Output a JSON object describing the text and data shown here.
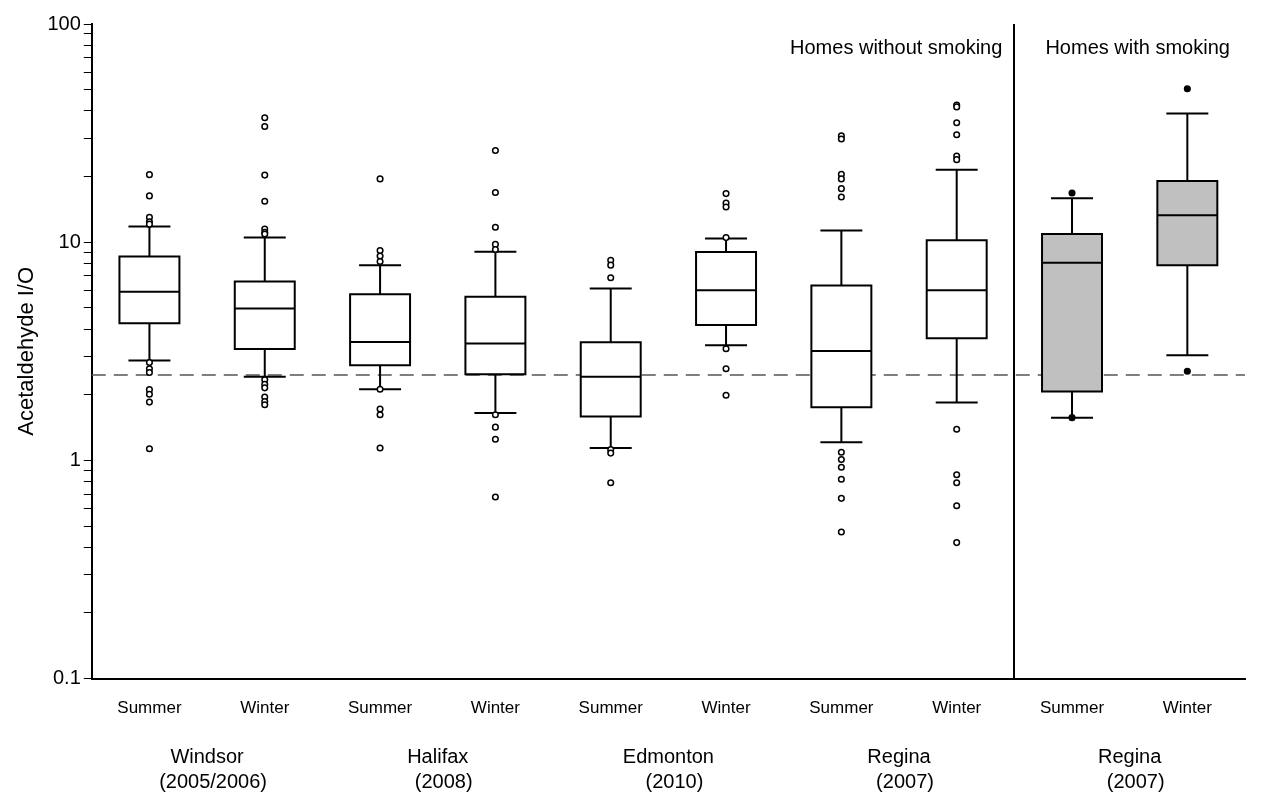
{
  "chart_data": {
    "type": "box",
    "ylabel": "Acetaldehyde I/O",
    "categories": [
      "Summer",
      "Winter",
      "Summer",
      "Winter",
      "Summer",
      "Winter",
      "Summer",
      "Winter",
      "Summer",
      "Winter"
    ],
    "colors": [
      "#ffffff",
      "#ffffff",
      "#ffffff",
      "#ffffff",
      "#ffffff",
      "#ffffff",
      "#ffffff",
      "#ffffff",
      "#c0c0c0",
      "#c0c0c0"
    ],
    "boxes": [
      {
        "low": 2.87,
        "q1": 4.25,
        "median": 5.93,
        "q3": 8.6,
        "high": 11.8,
        "outliers": [
          20.4,
          16.3,
          13.0,
          12.4,
          12.1,
          2.81,
          2.63,
          2.53,
          2.11,
          2.01,
          1.85,
          1.13
        ]
      },
      {
        "low": 2.42,
        "q1": 3.24,
        "median": 4.97,
        "q3": 6.6,
        "high": 10.5,
        "outliers": [
          37.2,
          33.9,
          20.3,
          15.4,
          11.5,
          11.1,
          10.9,
          2.34,
          2.23,
          2.15,
          1.95,
          1.86,
          1.8
        ]
      },
      {
        "low": 2.12,
        "q1": 2.73,
        "median": 3.49,
        "q3": 5.78,
        "high": 7.85,
        "outliers": [
          19.5,
          9.15,
          8.64,
          8.16,
          2.12,
          1.72,
          1.62,
          1.14
        ]
      },
      {
        "low": 1.65,
        "q1": 2.48,
        "median": 3.43,
        "q3": 5.62,
        "high": 9.05,
        "outliers": [
          26.3,
          16.9,
          11.7,
          9.77,
          9.26,
          1.62,
          1.42,
          1.25,
          0.68
        ]
      },
      {
        "low": 1.14,
        "q1": 1.59,
        "median": 2.42,
        "q3": 3.48,
        "high": 6.14,
        "outliers": [
          8.26,
          7.85,
          6.87,
          1.12,
          1.08,
          0.79
        ]
      },
      {
        "low": 3.37,
        "q1": 4.17,
        "median": 6.03,
        "q3": 9.02,
        "high": 10.4,
        "outliers": [
          16.7,
          15.1,
          14.5,
          10.5,
          3.25,
          2.63,
          1.99
        ]
      },
      {
        "low": 1.21,
        "q1": 1.75,
        "median": 3.17,
        "q3": 6.33,
        "high": 11.3,
        "outliers": [
          30.7,
          29.7,
          20.5,
          19.5,
          17.6,
          16.1,
          1.09,
          1.01,
          0.93,
          0.82,
          0.67,
          0.47
        ]
      },
      {
        "low": 1.84,
        "q1": 3.63,
        "median": 6.03,
        "q3": 10.2,
        "high": 21.5,
        "outliers": [
          42.5,
          41.7,
          35.3,
          31.1,
          24.8,
          23.9,
          1.39,
          0.86,
          0.79,
          0.62,
          0.42
        ]
      },
      {
        "low": 1.57,
        "q1": 2.07,
        "median": 8.04,
        "q3": 10.9,
        "high": 15.9,
        "outliers": [
          16.8,
          1.57
        ]
      },
      {
        "low": 3.03,
        "q1": 7.85,
        "median": 13.3,
        "q3": 19.1,
        "high": 38.9,
        "outliers": [
          50.5,
          2.56
        ]
      }
    ],
    "log": "y",
    "ylim": [
      0.1,
      100
    ],
    "yticks": [
      0.1,
      {
        "value": 0.2,
        "label": null
      },
      {
        "value": 0.3,
        "label": null
      },
      {
        "value": 0.4,
        "label": null
      },
      {
        "value": 0.5,
        "label": null
      },
      {
        "value": 0.6,
        "label": null
      },
      {
        "value": 0.7,
        "label": null
      },
      {
        "value": 0.8,
        "label": null
      },
      {
        "value": 0.9,
        "label": null
      },
      1,
      {
        "value": 2,
        "label": null
      },
      {
        "value": 3,
        "label": null
      },
      {
        "value": 4,
        "label": null
      },
      {
        "value": 5,
        "label": null
      },
      {
        "value": 6,
        "label": null
      },
      {
        "value": 7,
        "label": null
      },
      {
        "value": 8,
        "label": null
      },
      {
        "value": 9,
        "label": null
      },
      10,
      {
        "value": 20,
        "label": null
      },
      {
        "value": 30,
        "label": null
      },
      {
        "value": 40,
        "label": null
      },
      {
        "value": 50,
        "label": null
      },
      {
        "value": 60,
        "label": null
      },
      {
        "value": 70,
        "label": null
      },
      {
        "value": 80,
        "label": null
      },
      {
        "value": 90,
        "label": null
      },
      100
    ],
    "ref_lines": [
      {
        "axis": "y",
        "value": 2.46,
        "color": "#555555",
        "line_style": "dashed"
      }
    ],
    "grid": false,
    "legend": false,
    "annotations": [
      "Windsor\n(2005/2006)",
      "Halifax\n(2008)",
      "Edmonton\n(2010)",
      "Regina\n(2007)",
      "Regina\n(2007)",
      "Homes without smoking",
      "Homes with smoking"
    ]
  }
}
